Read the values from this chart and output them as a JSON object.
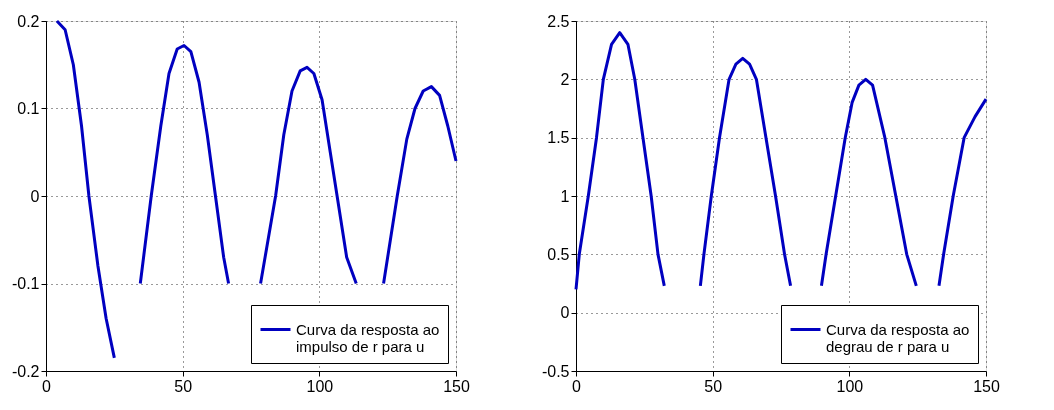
{
  "chart_data": [
    {
      "type": "line",
      "x": [
        4,
        7,
        10,
        13,
        15.7,
        19,
        22,
        25,
        27,
        34.5,
        38.5,
        42,
        45,
        48,
        50.5,
        53,
        56,
        59,
        62,
        65,
        66.8,
        70,
        78.5,
        84,
        87,
        90,
        93,
        95.5,
        98,
        101,
        104,
        106.5,
        110,
        113.5,
        116,
        123.5,
        128.5,
        132,
        135,
        138,
        141,
        144,
        147,
        150
      ],
      "series": [
        {
          "name": "Curva da resposta ao impulso de r para u",
          "color": "#0000c0",
          "values": [
            0.2,
            0.19,
            0.15,
            0.08,
            0,
            -0.08,
            -0.14,
            -0.185,
            null,
            -0.1,
            0,
            0.08,
            0.14,
            0.168,
            0.172,
            0.165,
            0.13,
            0.07,
            0,
            -0.07,
            -0.1,
            null,
            -0.1,
            0,
            0.07,
            0.12,
            0.143,
            0.147,
            0.14,
            0.11,
            0.05,
            0,
            -0.07,
            -0.1,
            null,
            -0.1,
            0,
            0.065,
            0.1,
            0.12,
            0.125,
            0.115,
            0.08,
            0.04
          ]
        }
      ],
      "xlim": [
        0,
        150
      ],
      "ylim": [
        -0.2,
        0.2
      ],
      "xticks": [
        0,
        50,
        100,
        150
      ],
      "yticks": [
        -0.2,
        -0.1,
        0,
        0.1,
        0.2
      ],
      "grid": true,
      "legend": "bottom right",
      "line_style": "solid"
    },
    {
      "type": "line",
      "x": [
        0,
        1.2,
        4.5,
        7.5,
        10,
        13,
        16,
        19,
        21.5,
        24.5,
        27.5,
        30,
        32.3,
        40,
        45.5,
        46.8,
        49.5,
        52.5,
        56,
        58.5,
        61,
        63.5,
        66,
        69.5,
        73,
        76.3,
        78.5,
        85,
        89.8,
        91.5,
        95,
        98.5,
        101,
        103.5,
        106,
        108.5,
        110,
        113,
        117,
        121,
        124.5,
        130,
        132.8,
        134.5,
        138,
        142,
        146,
        150
      ],
      "series": [
        {
          "name": "Curva da resposta ao degrau de r para u",
          "color": "#0000c0",
          "values": [
            0.2,
            0.5,
            1,
            1.5,
            2,
            2.3,
            2.4,
            2.3,
            2,
            1.5,
            1,
            0.5,
            0.23,
            null,
            0.23,
            0.5,
            1,
            1.5,
            2,
            2.13,
            2.18,
            2.13,
            2,
            1.5,
            1,
            0.5,
            0.23,
            null,
            0.23,
            0.5,
            1,
            1.5,
            1.8,
            1.95,
            2,
            1.95,
            1.8,
            1.5,
            1,
            0.5,
            0.23,
            null,
            0.23,
            0.5,
            1,
            1.5,
            1.68,
            1.83
          ]
        }
      ],
      "xlim": [
        0,
        150
      ],
      "ylim": [
        -0.5,
        2.5
      ],
      "xticks": [
        0,
        50,
        100,
        150
      ],
      "yticks": [
        -0.5,
        0,
        0.5,
        1,
        1.5,
        2,
        2.5
      ],
      "grid": true,
      "legend": "bottom right",
      "line_style": "solid"
    }
  ]
}
